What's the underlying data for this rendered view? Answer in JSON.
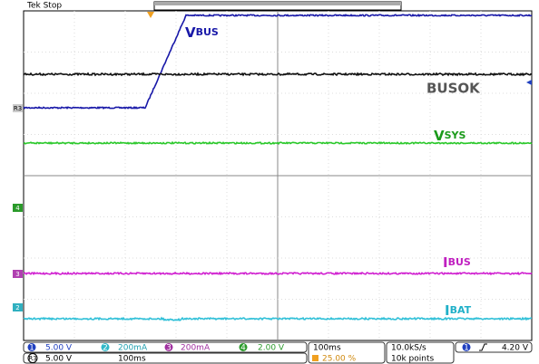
{
  "header": {
    "status": "Tek Stop"
  },
  "traces": [
    {
      "main": "V",
      "sub": "BUS"
    },
    {
      "main": "BUSOK"
    },
    {
      "main": "V",
      "sub": "SYS"
    },
    {
      "main": "I",
      "sub": "BUS"
    },
    {
      "main": "I",
      "sub": "BAT"
    }
  ],
  "markers": [
    "R3",
    "4",
    "3",
    "2"
  ],
  "status_bar": {
    "ch1": {
      "num": "1",
      "scale": "5.00 V"
    },
    "ch2": {
      "num": "2",
      "scale": "200mA"
    },
    "ch3": {
      "num": "3",
      "scale": "200mA"
    },
    "ch4": {
      "num": "4",
      "scale": "2.00 V"
    },
    "ref": {
      "num": "R3",
      "scale": "5.00 V",
      "time": "100ms"
    },
    "timebase": "100ms",
    "trigger_pos": "25.00 %",
    "rate": "10.0kS/s",
    "points": "10k points",
    "trigger": {
      "num": "1",
      "level": "4.20 V"
    }
  }
}
